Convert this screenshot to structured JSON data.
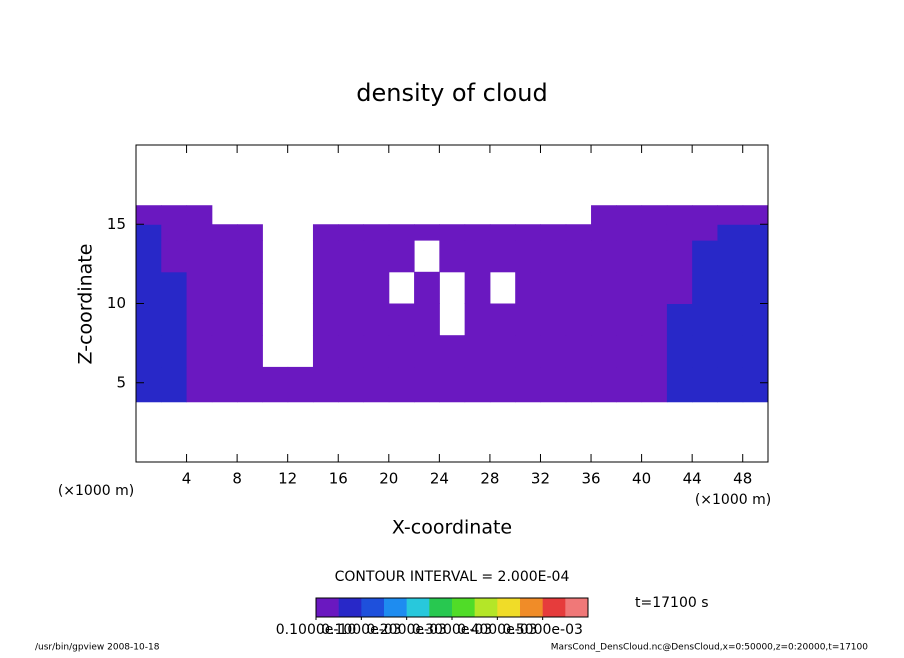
{
  "chart_data": {
    "type": "heatmap",
    "title": "density of cloud",
    "x_label": "X-coordinate",
    "y_label": "Z-coordinate",
    "x_unit": "(×1000 m)",
    "y_unit": "(×1000 m)",
    "xlim": [
      0,
      50
    ],
    "ylim": [
      0,
      20
    ],
    "xticks": [
      4,
      8,
      12,
      16,
      20,
      24,
      28,
      32,
      36,
      40,
      44,
      48
    ],
    "yticks": [
      5,
      10,
      15
    ],
    "x_edges": [
      0,
      2,
      4,
      6,
      8,
      10,
      12,
      14,
      16,
      18,
      20,
      22,
      24,
      26,
      28,
      30,
      32,
      34,
      36,
      38,
      40,
      42,
      44,
      46,
      48,
      50
    ],
    "y_edges": [
      3.8,
      6,
      8,
      10,
      12,
      14,
      15,
      16.2
    ],
    "values": [
      [
        7e-05,
        7e-05,
        2e-05,
        2e-05,
        2e-05,
        2e-05,
        2e-05,
        2e-05,
        2e-05,
        2e-05,
        2e-05,
        2e-05,
        2e-05,
        2e-05,
        2e-05,
        2e-05,
        2e-05,
        2e-05,
        2e-05,
        2e-05,
        2e-05,
        7e-05,
        7e-05,
        7e-05,
        7e-05
      ],
      [
        7e-05,
        7e-05,
        2e-05,
        2e-05,
        2e-05,
        null,
        null,
        2e-05,
        2e-05,
        2e-05,
        2e-05,
        2e-05,
        2e-05,
        2e-05,
        2e-05,
        2e-05,
        2e-05,
        2e-05,
        2e-05,
        2e-05,
        2e-05,
        7e-05,
        7e-05,
        7e-05,
        7e-05
      ],
      [
        7e-05,
        7e-05,
        2e-05,
        2e-05,
        2e-05,
        null,
        null,
        2e-05,
        2e-05,
        2e-05,
        2e-05,
        2e-05,
        null,
        2e-05,
        2e-05,
        2e-05,
        2e-05,
        2e-05,
        2e-05,
        2e-05,
        2e-05,
        7e-05,
        7e-05,
        7e-05,
        7e-05
      ],
      [
        7e-05,
        7e-05,
        2e-05,
        2e-05,
        2e-05,
        null,
        null,
        2e-05,
        2e-05,
        2e-05,
        null,
        2e-05,
        null,
        2e-05,
        null,
        2e-05,
        2e-05,
        2e-05,
        2e-05,
        2e-05,
        2e-05,
        2e-05,
        7e-05,
        7e-05,
        7e-05
      ],
      [
        7e-05,
        2e-05,
        2e-05,
        2e-05,
        2e-05,
        null,
        null,
        2e-05,
        2e-05,
        2e-05,
        2e-05,
        null,
        2e-05,
        2e-05,
        2e-05,
        2e-05,
        2e-05,
        2e-05,
        2e-05,
        2e-05,
        2e-05,
        2e-05,
        7e-05,
        7e-05,
        7e-05
      ],
      [
        7e-05,
        2e-05,
        2e-05,
        2e-05,
        2e-05,
        null,
        null,
        2e-05,
        2e-05,
        2e-05,
        2e-05,
        2e-05,
        2e-05,
        2e-05,
        2e-05,
        2e-05,
        2e-05,
        2e-05,
        2e-05,
        2e-05,
        2e-05,
        2e-05,
        2e-05,
        7e-05,
        7e-05
      ],
      [
        2e-05,
        2e-05,
        2e-05,
        null,
        null,
        null,
        null,
        null,
        null,
        null,
        null,
        null,
        null,
        null,
        null,
        null,
        null,
        null,
        2e-05,
        2e-05,
        2e-05,
        2e-05,
        2e-05,
        2e-05,
        2e-05
      ]
    ],
    "contour_interval": "CONTOUR INTERVAL = 2.000E-04",
    "time_label": "t=17100 s",
    "colorbar": {
      "lim": [
        0,
        0.0006
      ],
      "colors": [
        "#6a18c0",
        "#2828c8",
        "#1e50dc",
        "#1e8cf0",
        "#28c8dc",
        "#28c850",
        "#50dc28",
        "#b4e628",
        "#f0dc28",
        "#f08c28",
        "#e63c3c",
        "#f07878"
      ],
      "ticks": [
        {
          "value": 1e-11,
          "label": "0.1000e-10"
        },
        {
          "value": 0.0001,
          "label": "0.1000e-03"
        },
        {
          "value": 0.0002,
          "label": "0.2000e-03"
        },
        {
          "value": 0.0003,
          "label": "0.3000e-03"
        },
        {
          "value": 0.0004,
          "label": "0.4000e-03"
        },
        {
          "value": 0.0005,
          "label": "0.5000e-03"
        }
      ]
    },
    "footer_left": "/usr/bin/gpview   2008-10-18",
    "footer_right": "MarsCond_DensCloud.nc@DensCloud,x=0:50000,z=0:20000,t=17100"
  }
}
